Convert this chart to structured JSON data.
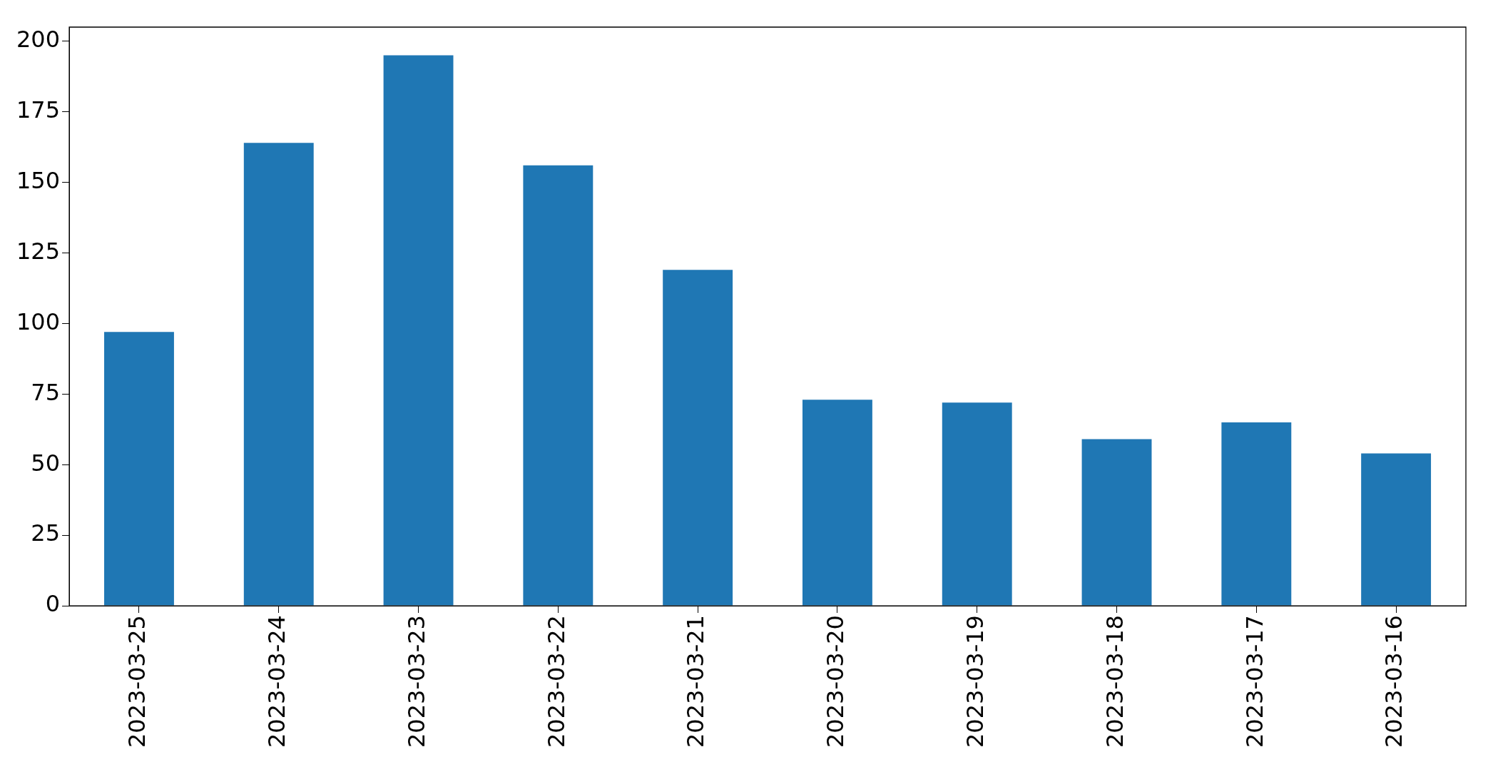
{
  "chart_data": {
    "type": "bar",
    "categories": [
      "2023-03-25",
      "2023-03-24",
      "2023-03-23",
      "2023-03-22",
      "2023-03-21",
      "2023-03-20",
      "2023-03-19",
      "2023-03-18",
      "2023-03-17",
      "2023-03-16"
    ],
    "values": [
      97,
      164,
      195,
      156,
      119,
      73,
      72,
      59,
      65,
      54
    ],
    "color": "#1f77b4",
    "ylim": [
      0,
      205
    ],
    "yticks": [
      0,
      25,
      50,
      75,
      100,
      125,
      150,
      175,
      200
    ],
    "grid": false,
    "legend": false
  }
}
